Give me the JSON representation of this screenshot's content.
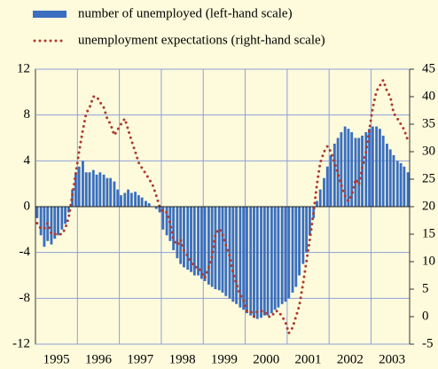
{
  "chart_data": {
    "type": "bar-line",
    "x": [
      1995.04,
      1995.13,
      1995.21,
      1995.29,
      1995.38,
      1995.46,
      1995.54,
      1995.63,
      1995.71,
      1995.79,
      1995.88,
      1995.96,
      1996.04,
      1996.13,
      1996.21,
      1996.29,
      1996.38,
      1996.46,
      1996.54,
      1996.63,
      1996.71,
      1996.79,
      1996.88,
      1996.96,
      1997.04,
      1997.13,
      1997.21,
      1997.29,
      1997.38,
      1997.46,
      1997.54,
      1997.63,
      1997.71,
      1997.79,
      1997.88,
      1997.96,
      1998.04,
      1998.13,
      1998.21,
      1998.29,
      1998.38,
      1998.46,
      1998.54,
      1998.63,
      1998.71,
      1998.79,
      1998.88,
      1998.96,
      1999.04,
      1999.13,
      1999.21,
      1999.29,
      1999.38,
      1999.46,
      1999.54,
      1999.63,
      1999.71,
      1999.79,
      1999.88,
      1999.96,
      2000.04,
      2000.13,
      2000.21,
      2000.29,
      2000.38,
      2000.46,
      2000.54,
      2000.63,
      2000.71,
      2000.79,
      2000.88,
      2000.96,
      2001.04,
      2001.13,
      2001.21,
      2001.29,
      2001.38,
      2001.46,
      2001.54,
      2001.63,
      2001.71,
      2001.79,
      2001.88,
      2001.96,
      2002.04,
      2002.13,
      2002.21,
      2002.29,
      2002.38,
      2002.46,
      2002.54,
      2002.63,
      2002.71,
      2002.79,
      2002.88,
      2002.96,
      2003.04,
      2003.13,
      2003.21,
      2003.29,
      2003.38,
      2003.46,
      2003.54,
      2003.63,
      2003.71,
      2003.79,
      2003.88
    ],
    "series": [
      {
        "name": "number of unemployed (left-hand scale)",
        "type": "bar",
        "color": "#3a6fc0",
        "values": [
          -1,
          -2.5,
          -3.5,
          -3,
          -3.3,
          -2.8,
          -2.5,
          -2,
          -1.5,
          -0.5,
          1.5,
          3,
          3.5,
          4,
          3,
          3,
          3.2,
          2.8,
          3,
          2.8,
          2.5,
          2.5,
          2.2,
          1.5,
          1,
          1.2,
          1.5,
          1.2,
          1.3,
          1,
          0.8,
          0.5,
          0.3,
          0,
          -0.2,
          -0.5,
          -2,
          -2.5,
          -3,
          -3.8,
          -4.5,
          -5,
          -5.3,
          -5.5,
          -5.7,
          -6,
          -6,
          -6.3,
          -6.5,
          -6.8,
          -7,
          -7.2,
          -7.3,
          -7.5,
          -7.8,
          -8,
          -8.3,
          -8.5,
          -8.8,
          -9,
          -9.3,
          -9.5,
          -9.7,
          -9.8,
          -9.7,
          -9.5,
          -9.5,
          -9.3,
          -9,
          -8.8,
          -8.5,
          -8.3,
          -8,
          -7.5,
          -7,
          -6,
          -5,
          -4,
          -2.5,
          -1,
          0.5,
          1.5,
          2.5,
          3.5,
          4.5,
          5.5,
          6,
          6.5,
          7,
          6.8,
          6.5,
          6,
          6,
          6.2,
          6.5,
          6.8,
          7,
          7,
          6.8,
          6.2,
          5.5,
          5,
          4.5,
          4,
          3.8,
          3.5,
          3
        ]
      },
      {
        "name": "unemployment expectations (right-hand scale)",
        "type": "line",
        "axis": "y2",
        "color": "#b03a2e",
        "values": [
          17,
          16,
          16,
          17,
          15,
          15,
          15,
          15,
          16,
          18,
          22,
          26,
          30,
          34,
          37,
          38,
          40,
          40,
          39,
          38,
          36,
          35,
          33,
          34,
          35,
          36,
          34,
          32,
          30,
          28,
          27,
          26,
          25,
          24,
          22,
          20,
          19,
          19,
          17,
          14,
          13,
          14,
          12,
          11,
          10,
          9,
          9,
          8,
          7,
          9,
          11,
          15,
          16,
          15,
          13,
          11,
          8,
          6,
          4,
          3,
          1,
          1,
          0,
          1,
          1,
          1,
          0,
          0,
          1,
          1,
          0,
          -1,
          -3,
          -2,
          0,
          2,
          6,
          10,
          14,
          19,
          24,
          28,
          30,
          31,
          30,
          28,
          26,
          24,
          22,
          21,
          22,
          25,
          24,
          27,
          30,
          34,
          38,
          41,
          42,
          43,
          41,
          40,
          37,
          36,
          35,
          34,
          32
        ]
      }
    ],
    "xlim": [
      1995,
      2003.92
    ],
    "xticks": [
      {
        "value": 1995.5,
        "label": "1995"
      },
      {
        "value": 1996.5,
        "label": "1996"
      },
      {
        "value": 1997.5,
        "label": "1997"
      },
      {
        "value": 1998.5,
        "label": "1998"
      },
      {
        "value": 1999.5,
        "label": "1999"
      },
      {
        "value": 2000.5,
        "label": "2000"
      },
      {
        "value": 2001.5,
        "label": "2001"
      },
      {
        "value": 2002.5,
        "label": "2002"
      },
      {
        "value": 2003.5,
        "label": "2003"
      }
    ],
    "ylim": [
      -12,
      12
    ],
    "yticks": [
      -12,
      -8,
      -4,
      0,
      4,
      8,
      12
    ],
    "y2lim": [
      -5,
      45
    ],
    "y2ticks": [
      -5,
      0,
      5,
      10,
      15,
      20,
      25,
      30,
      35,
      40,
      45
    ],
    "grid": true
  }
}
